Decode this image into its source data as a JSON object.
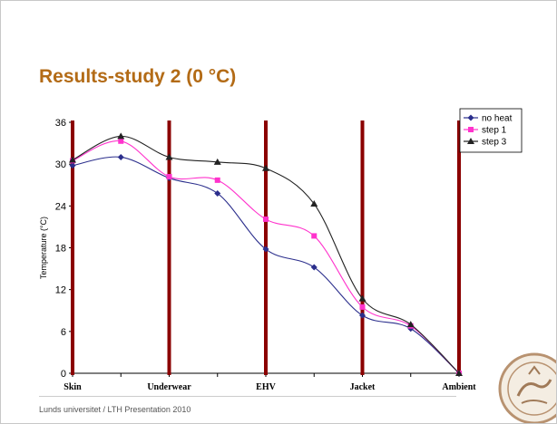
{
  "slide": {
    "title": "Results-study 2 (0 °C)",
    "footer": "Lunds universitet / LTH Presentation 2010"
  },
  "chart_data": {
    "type": "line",
    "title": "",
    "xlabel": "",
    "ylabel": "Temperature (°C)",
    "ylim": [
      0,
      36
    ],
    "yticks": [
      0,
      6,
      12,
      18,
      24,
      30,
      36
    ],
    "x": [
      0,
      1,
      2,
      3,
      4,
      5,
      6,
      7,
      8
    ],
    "category_labels": [
      {
        "x": 0,
        "label": "Skin"
      },
      {
        "x": 2,
        "label": "Underwear"
      },
      {
        "x": 4,
        "label": "EHV"
      },
      {
        "x": 6,
        "label": "Jacket"
      },
      {
        "x": 8,
        "label": "Ambient"
      }
    ],
    "layer_boundaries": [
      0,
      2,
      4,
      6,
      8
    ],
    "grid": false,
    "legend_position": "top-right",
    "series": [
      {
        "name": "no heat",
        "color": "#2b2e8c",
        "marker": "diamond",
        "values": [
          29.8,
          31.0,
          28.0,
          25.8,
          17.8,
          15.2,
          8.3,
          6.4,
          0
        ]
      },
      {
        "name": "step 1",
        "color": "#ff33cc",
        "marker": "square",
        "values": [
          30.5,
          33.3,
          28.2,
          27.7,
          22.1,
          19.7,
          9.5,
          6.8,
          0
        ]
      },
      {
        "name": "step 3",
        "color": "#222222",
        "marker": "triangle",
        "values": [
          30.6,
          34.0,
          31.0,
          30.3,
          29.4,
          24.3,
          10.7,
          7.0,
          0
        ]
      }
    ],
    "colors": {
      "boundary": "#8b0000",
      "axis": "#000000",
      "title": "#b36b16"
    }
  }
}
